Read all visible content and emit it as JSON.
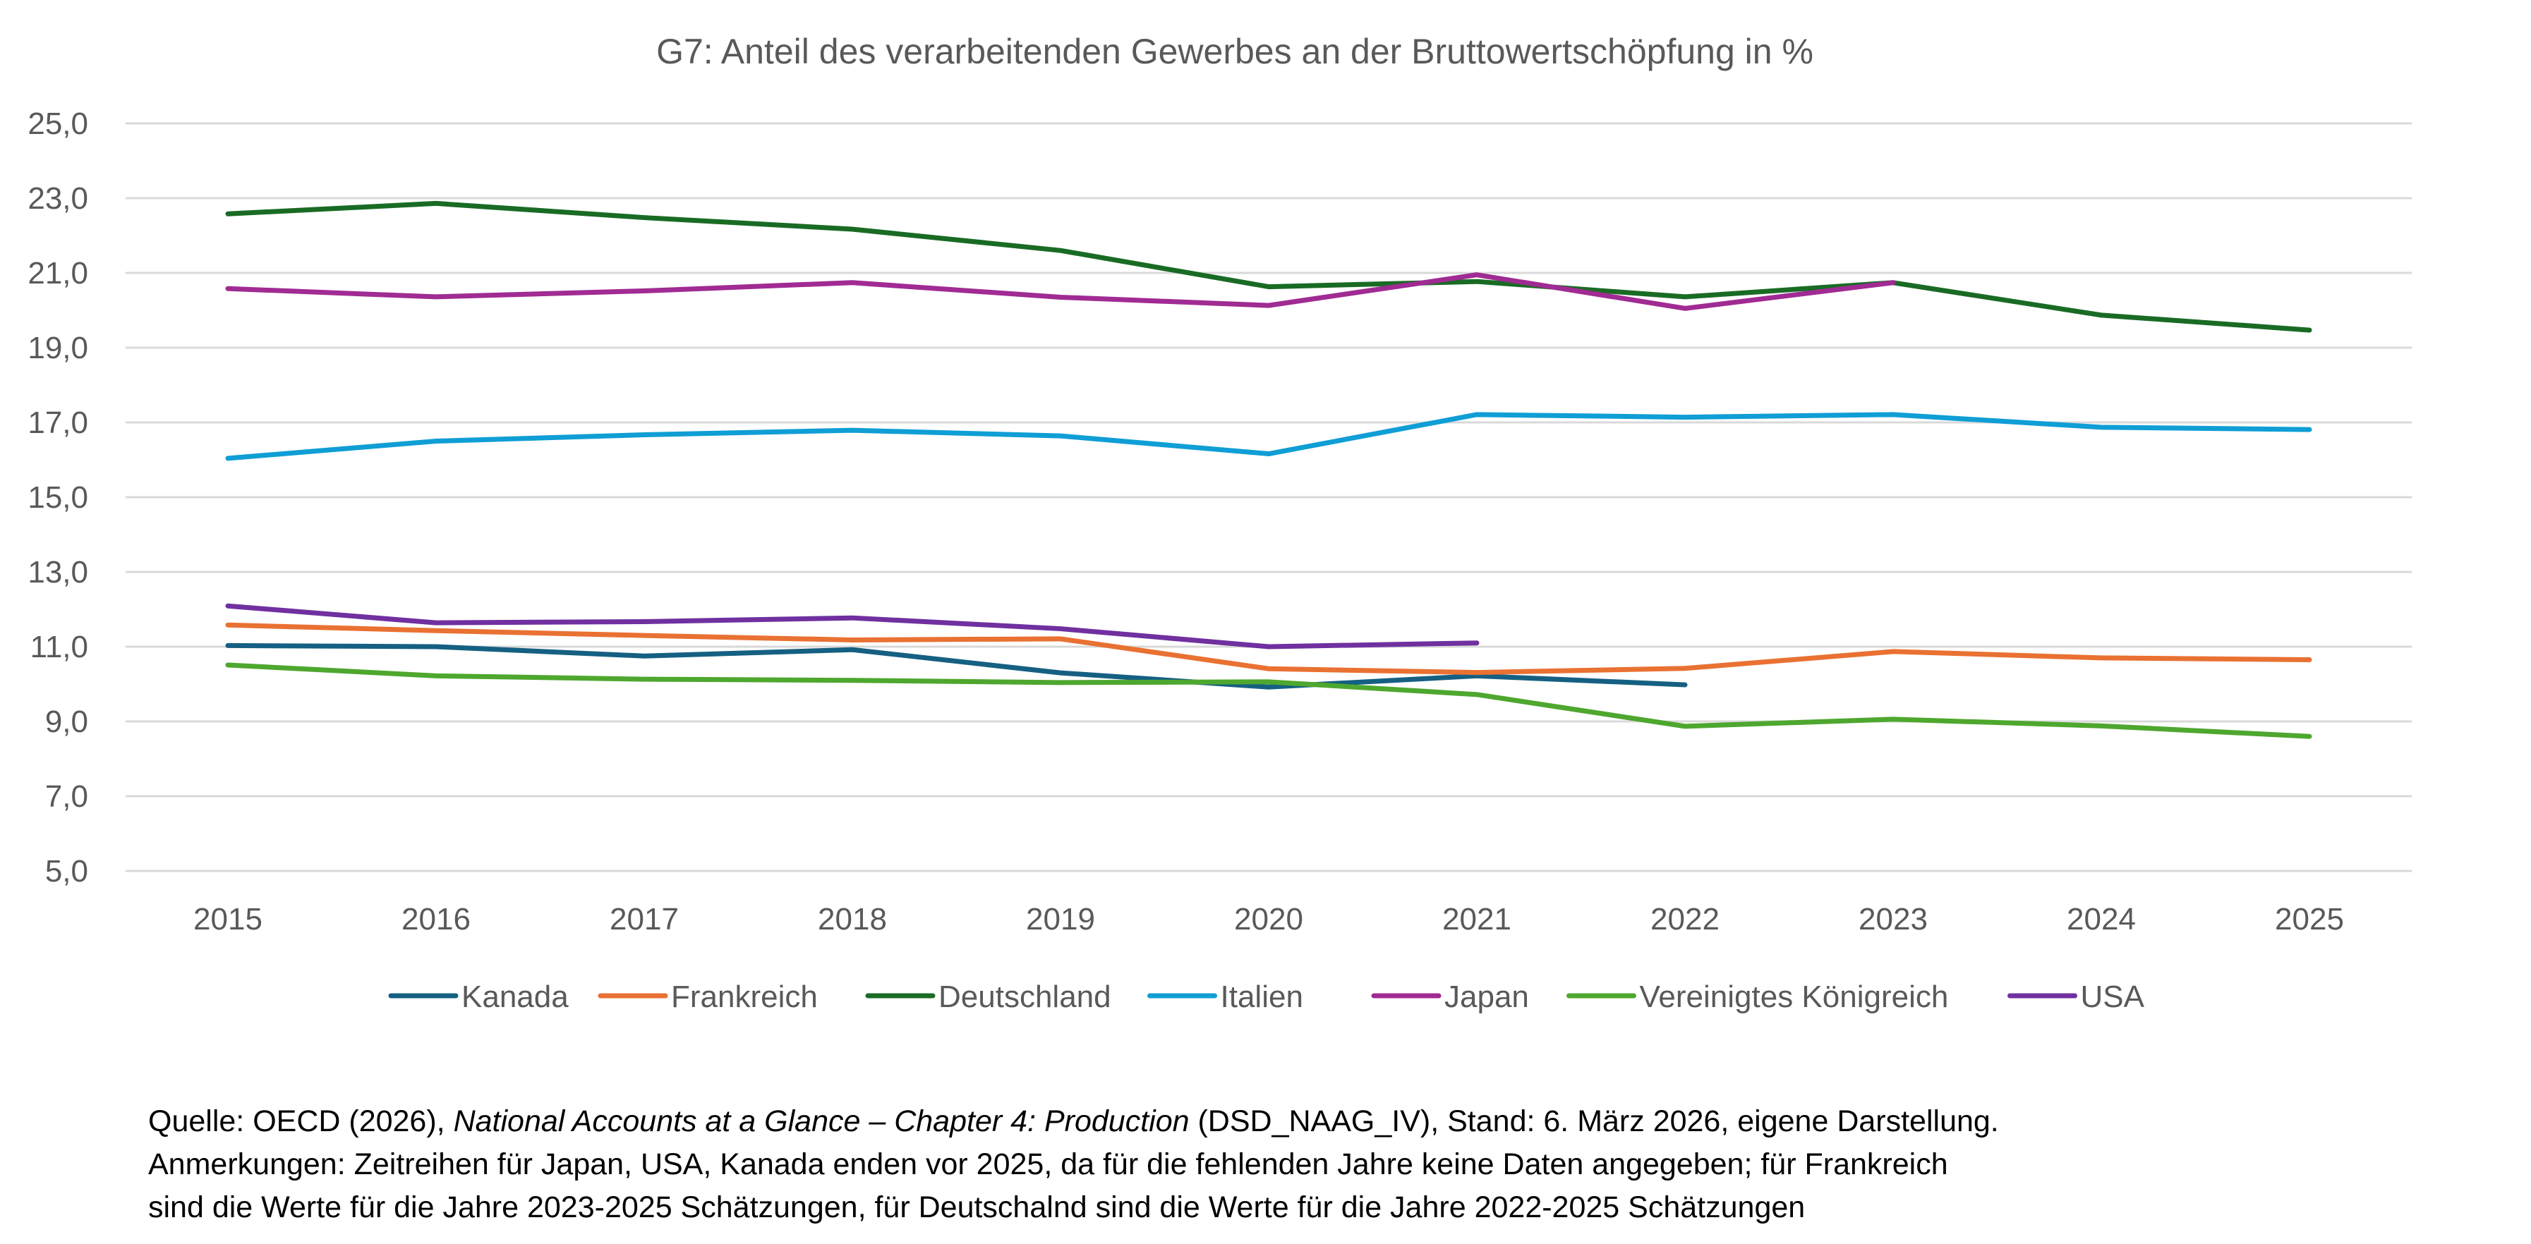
{
  "chart_data": {
    "type": "line",
    "title": "G7: Anteil des verarbeitenden Gewerbes an der Bruttowertschöpfung in %",
    "xlabel": "",
    "ylabel": "",
    "x": [
      "2015",
      "2016",
      "2017",
      "2018",
      "2019",
      "2020",
      "2021",
      "2022",
      "2023",
      "2024",
      "2025"
    ],
    "ylim": [
      5,
      25
    ],
    "yticks": [
      5,
      7,
      9,
      11,
      13,
      15,
      17,
      19,
      21,
      23,
      25
    ],
    "ytick_labels": [
      "5,0",
      "7,0",
      "9,0",
      "11,0",
      "13,0",
      "15,0",
      "17,0",
      "19,0",
      "21,0",
      "23,0",
      "25,0"
    ],
    "grid": true,
    "legend_position": "bottom",
    "series": [
      {
        "name": "Kanada",
        "color": "#156082",
        "values": [
          11.03,
          11.0,
          10.75,
          10.92,
          10.3,
          9.92,
          10.22,
          9.98,
          null,
          null,
          null
        ]
      },
      {
        "name": "Frankreich",
        "color": "#E97132",
        "values": [
          11.58,
          11.43,
          11.3,
          11.18,
          11.21,
          10.41,
          10.31,
          10.42,
          10.87,
          10.7,
          10.65
        ]
      },
      {
        "name": "Deutschland",
        "color": "#196B24",
        "values": [
          22.58,
          22.86,
          22.48,
          22.17,
          21.6,
          20.63,
          20.77,
          20.36,
          20.74,
          19.87,
          19.47
        ]
      },
      {
        "name": "Italien",
        "color": "#0F9ED5",
        "values": [
          16.04,
          16.5,
          16.67,
          16.79,
          16.64,
          16.16,
          17.21,
          17.14,
          17.21,
          16.87,
          16.81
        ]
      },
      {
        "name": "Japan",
        "color": "#A02B93",
        "values": [
          20.58,
          20.36,
          20.52,
          20.74,
          20.35,
          20.13,
          20.95,
          20.05,
          20.74,
          null,
          null
        ]
      },
      {
        "name": "Vereinigtes Königreich",
        "color": "#4EA72E",
        "values": [
          10.51,
          10.22,
          10.13,
          10.1,
          10.04,
          10.06,
          9.72,
          8.87,
          9.06,
          8.88,
          8.6
        ]
      },
      {
        "name": "USA",
        "color": "#7030A0",
        "values": [
          12.09,
          11.64,
          11.67,
          11.77,
          11.48,
          11.0,
          11.1,
          null,
          null,
          null,
          null
        ]
      }
    ]
  },
  "footnote": {
    "source_prefix": "Quelle: OECD (2026), ",
    "source_title": "National Accounts at a Glance – Chapter 4: Production",
    "source_suffix": " (DSD_NAAG_IV), Stand: 6. März 2026, eigene Darstellung.",
    "note_line1": "Anmerkungen: Zeitreihen für Japan, USA, Kanada enden vor 2025, da für die fehlenden Jahre keine Daten angegeben; für Frankreich",
    "note_line2": "sind die Werte für die Jahre 2023-2025 Schätzungen, für Deutschalnd sind die Werte für die Jahre 2022-2025 Schätzungen"
  }
}
